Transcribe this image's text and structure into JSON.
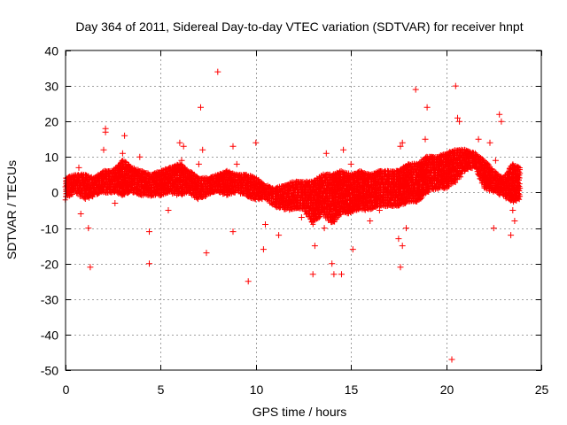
{
  "chart_data": {
    "type": "scatter",
    "title": "Day 364 of 2011, Sidereal Day-to-day VTEC variation (SDTVAR) for receiver hnpt",
    "xlabel": "GPS time / hours",
    "ylabel": "SDTVAR / TECUs",
    "xlim": [
      0,
      25
    ],
    "ylim": [
      -50,
      40
    ],
    "xticks": [
      0,
      5,
      10,
      15,
      20,
      25
    ],
    "yticks": [
      -50,
      -40,
      -30,
      -20,
      -10,
      0,
      10,
      20,
      30,
      40
    ],
    "grid": true,
    "marker": "+",
    "color": "#ff0000",
    "band": {
      "x": [
        0.0,
        0.5,
        1.0,
        1.5,
        2.0,
        2.5,
        3.0,
        3.5,
        4.0,
        4.5,
        5.0,
        5.5,
        6.0,
        6.5,
        7.0,
        7.5,
        8.0,
        8.5,
        9.0,
        9.5,
        10.0,
        10.5,
        11.0,
        11.5,
        12.0,
        12.5,
        13.0,
        13.5,
        14.0,
        14.5,
        15.0,
        15.5,
        16.0,
        16.5,
        17.0,
        17.5,
        18.0,
        18.5,
        19.0,
        19.5,
        20.0,
        20.5,
        21.0,
        21.5,
        22.0,
        22.5,
        23.0,
        23.5,
        23.9
      ],
      "upper": [
        4,
        5,
        5,
        4,
        6,
        6,
        9,
        7,
        6,
        5,
        6,
        7,
        8,
        6,
        4,
        4,
        5,
        6,
        5,
        5,
        4,
        2,
        1,
        2,
        3,
        3,
        3,
        5,
        5,
        6,
        5,
        6,
        5,
        6,
        6,
        6,
        8,
        8,
        10,
        10,
        11,
        12,
        12,
        11,
        9,
        6,
        4,
        8,
        7
      ],
      "lower": [
        -2,
        0,
        -2,
        -1,
        0,
        0,
        -1,
        0,
        -1,
        -1,
        -1,
        0,
        -1,
        0,
        -2,
        -1,
        0,
        -1,
        0,
        -1,
        -2,
        -2,
        -4,
        -5,
        -5,
        -5,
        -9,
        -6,
        -9,
        -6,
        -6,
        -5,
        -5,
        -4,
        -4,
        -4,
        -3,
        -3,
        0,
        1,
        1,
        3,
        6,
        7,
        1,
        0,
        -1,
        -3,
        -2
      ]
    },
    "outliers": [
      {
        "x": 0.7,
        "y": 7
      },
      {
        "x": 0.8,
        "y": -6
      },
      {
        "x": 1.2,
        "y": -10
      },
      {
        "x": 1.3,
        "y": -21
      },
      {
        "x": 2.1,
        "y": 18
      },
      {
        "x": 2.1,
        "y": 17
      },
      {
        "x": 2.0,
        "y": 12
      },
      {
        "x": 3.1,
        "y": 16
      },
      {
        "x": 3.0,
        "y": 11
      },
      {
        "x": 3.9,
        "y": 10
      },
      {
        "x": 4.4,
        "y": -20
      },
      {
        "x": 4.4,
        "y": -11
      },
      {
        "x": 6.0,
        "y": 14
      },
      {
        "x": 6.2,
        "y": 13
      },
      {
        "x": 6.1,
        "y": 9
      },
      {
        "x": 7.1,
        "y": 24
      },
      {
        "x": 7.2,
        "y": 12
      },
      {
        "x": 7.0,
        "y": 8
      },
      {
        "x": 7.4,
        "y": -17
      },
      {
        "x": 8.0,
        "y": 34
      },
      {
        "x": 8.8,
        "y": 13
      },
      {
        "x": 8.8,
        "y": -11
      },
      {
        "x": 9.0,
        "y": 8
      },
      {
        "x": 9.6,
        "y": -25
      },
      {
        "x": 10.0,
        "y": 14
      },
      {
        "x": 10.4,
        "y": -16
      },
      {
        "x": 10.5,
        "y": -9
      },
      {
        "x": 11.2,
        "y": -12
      },
      {
        "x": 12.4,
        "y": -7
      },
      {
        "x": 13.0,
        "y": -23
      },
      {
        "x": 13.1,
        "y": -15
      },
      {
        "x": 13.6,
        "y": -10
      },
      {
        "x": 13.7,
        "y": 11
      },
      {
        "x": 14.0,
        "y": -20
      },
      {
        "x": 14.1,
        "y": -23
      },
      {
        "x": 14.5,
        "y": -23
      },
      {
        "x": 14.6,
        "y": 12
      },
      {
        "x": 15.0,
        "y": 8
      },
      {
        "x": 15.1,
        "y": -16
      },
      {
        "x": 16.5,
        "y": -5
      },
      {
        "x": 17.5,
        "y": -13
      },
      {
        "x": 17.6,
        "y": -21
      },
      {
        "x": 17.7,
        "y": -15
      },
      {
        "x": 17.6,
        "y": 13
      },
      {
        "x": 17.7,
        "y": 14
      },
      {
        "x": 17.9,
        "y": -10
      },
      {
        "x": 18.4,
        "y": 29
      },
      {
        "x": 19.0,
        "y": 24
      },
      {
        "x": 18.9,
        "y": 15
      },
      {
        "x": 20.3,
        "y": -47
      },
      {
        "x": 20.5,
        "y": 30
      },
      {
        "x": 20.6,
        "y": 21
      },
      {
        "x": 20.7,
        "y": 20
      },
      {
        "x": 21.7,
        "y": 15
      },
      {
        "x": 22.3,
        "y": 14
      },
      {
        "x": 22.5,
        "y": -10
      },
      {
        "x": 22.6,
        "y": 9
      },
      {
        "x": 22.8,
        "y": 22
      },
      {
        "x": 22.9,
        "y": 20
      },
      {
        "x": 23.4,
        "y": -12
      },
      {
        "x": 23.6,
        "y": -8
      },
      {
        "x": 23.5,
        "y": -5
      },
      {
        "x": 19.6,
        "y": 8
      },
      {
        "x": 16.0,
        "y": -8
      },
      {
        "x": 12.0,
        "y": -4
      },
      {
        "x": 5.4,
        "y": -5
      },
      {
        "x": 2.6,
        "y": -3
      }
    ]
  }
}
